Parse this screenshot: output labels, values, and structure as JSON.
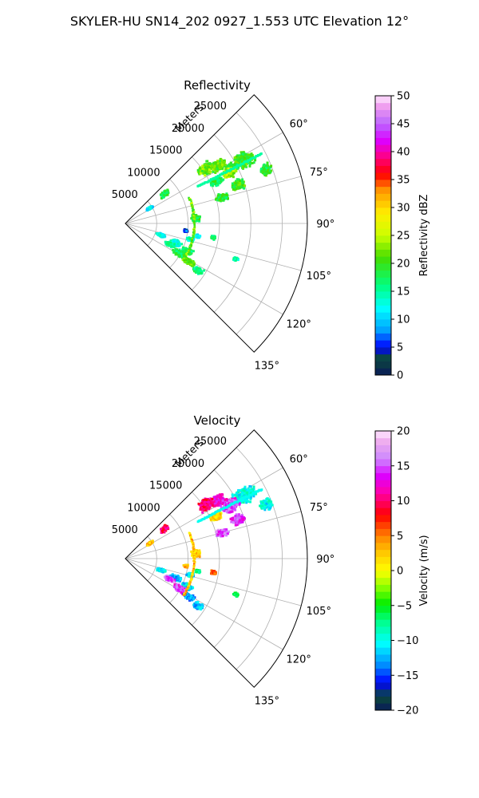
{
  "suptitle": "SKYLER-HU  SN14_202  0927_1.553 UTC Elevation 12°",
  "chart_data": [
    {
      "type": "ppi-sector",
      "title": "Reflectivity",
      "range_label": "Meters",
      "range_ticks": [
        5000,
        10000,
        15000,
        20000,
        25000
      ],
      "range_tick_labels": [
        "5000",
        "10000",
        "15000",
        "20000",
        "25000"
      ],
      "rmax": 29000,
      "azimuth_range_deg": [
        45,
        135
      ],
      "azimuth_ticks_deg": [
        60,
        75,
        90,
        105,
        120,
        135
      ],
      "azimuth_tick_labels": [
        "60°",
        "75°",
        "90°",
        "105°",
        "120°",
        "135°"
      ],
      "colorbar": {
        "label": "Reflectivity dBZ",
        "vmin": 0,
        "vmax": 50,
        "ticks": [
          0,
          5,
          10,
          15,
          20,
          25,
          30,
          35,
          40,
          45,
          50
        ],
        "tick_labels": [
          "0",
          "5",
          "10",
          "15",
          "20",
          "25",
          "30",
          "35",
          "40",
          "45",
          "50"
        ],
        "stops": [
          [
            0,
            "#0a1a5a"
          ],
          [
            0.06,
            "#0b4a3a"
          ],
          [
            0.1,
            "#0000ff"
          ],
          [
            0.16,
            "#00a0ff"
          ],
          [
            0.24,
            "#00ffff"
          ],
          [
            0.32,
            "#00ff80"
          ],
          [
            0.42,
            "#44dd00"
          ],
          [
            0.5,
            "#ccff00"
          ],
          [
            0.58,
            "#ffee00"
          ],
          [
            0.66,
            "#ff9900"
          ],
          [
            0.72,
            "#ff0000"
          ],
          [
            0.78,
            "#ff0080"
          ],
          [
            0.84,
            "#dd00ff"
          ],
          [
            0.9,
            "#bb66ff"
          ],
          [
            0.96,
            "#ee99ee"
          ],
          [
            1,
            "#ffe8ff"
          ]
        ]
      },
      "echo_regions": [
        {
          "az": 62,
          "r": 21500,
          "daz": 4.0,
          "dr": 2200,
          "value": 20
        },
        {
          "az": 62.5,
          "r": 19000,
          "daz": 3.0,
          "dr": 1400,
          "value": 18
        },
        {
          "az": 58,
          "r": 17500,
          "daz": 3.5,
          "dr": 1500,
          "value": 21
        },
        {
          "az": 64,
          "r": 18500,
          "daz": 3.0,
          "dr": 1400,
          "value": 24
        },
        {
          "az": 56,
          "r": 15500,
          "daz": 4.0,
          "dr": 1500,
          "value": 22
        },
        {
          "az": 65,
          "r": 16000,
          "daz": 3.0,
          "dr": 1200,
          "value": 18
        },
        {
          "az": 69,
          "r": 24000,
          "daz": 2.5,
          "dr": 1200,
          "value": 19
        },
        {
          "az": 71,
          "r": 19000,
          "daz": 3.0,
          "dr": 1400,
          "value": 20
        },
        {
          "az": 75,
          "r": 16000,
          "daz": 2.5,
          "dr": 1200,
          "value": 19
        },
        {
          "az": 53,
          "r": 7800,
          "daz": 3.5,
          "dr": 900,
          "value": 18
        },
        {
          "az": 58,
          "r": 4600,
          "daz": 3.0,
          "dr": 700,
          "value": 12
        },
        {
          "az": 86,
          "r": 11300,
          "daz": 3.5,
          "dr": 900,
          "value": 19
        },
        {
          "az": 108,
          "r": 6000,
          "daz": 3.0,
          "dr": 900,
          "value": 12
        },
        {
          "az": 111,
          "r": 8600,
          "daz": 3.5,
          "dr": 1100,
          "value": 13
        },
        {
          "az": 115,
          "r": 7800,
          "daz": 3.0,
          "dr": 1000,
          "value": 16
        },
        {
          "az": 114,
          "r": 10800,
          "daz": 3.0,
          "dr": 1100,
          "value": 17
        },
        {
          "az": 119,
          "r": 10000,
          "daz": 3.5,
          "dr": 1500,
          "value": 18
        },
        {
          "az": 121,
          "r": 11800,
          "daz": 3.0,
          "dr": 1300,
          "value": 21
        },
        {
          "az": 123,
          "r": 13800,
          "daz": 2.5,
          "dr": 1000,
          "value": 16
        },
        {
          "az": 104,
          "r": 10700,
          "daz": 2.0,
          "dr": 700,
          "value": 14
        },
        {
          "az": 100,
          "r": 11700,
          "daz": 1.5,
          "dr": 500,
          "value": 12
        },
        {
          "az": 97,
          "r": 9700,
          "daz": 1.5,
          "dr": 400,
          "value": 6
        },
        {
          "az": 99,
          "r": 14200,
          "daz": 1.5,
          "dr": 500,
          "value": 17
        },
        {
          "az": 108,
          "r": 18500,
          "daz": 1.0,
          "dr": 500,
          "value": 15
        }
      ],
      "arc": {
        "r": 11000,
        "az_from": 68,
        "az_to": 122,
        "value": 22
      },
      "line": {
        "az": 63,
        "r_from": 13000,
        "r_to": 24500,
        "value": 15
      }
    },
    {
      "type": "ppi-sector",
      "title": "Velocity",
      "range_label": "Meters",
      "range_ticks": [
        5000,
        10000,
        15000,
        20000,
        25000
      ],
      "range_tick_labels": [
        "5000",
        "10000",
        "15000",
        "20000",
        "25000"
      ],
      "rmax": 29000,
      "azimuth_range_deg": [
        45,
        135
      ],
      "azimuth_ticks_deg": [
        60,
        75,
        90,
        105,
        120,
        135
      ],
      "azimuth_tick_labels": [
        "60°",
        "75°",
        "90°",
        "105°",
        "120°",
        "135°"
      ],
      "colorbar": {
        "label": "Velocity (m/s)",
        "vmin": -20,
        "vmax": 20,
        "ticks": [
          -20,
          -15,
          -10,
          -5,
          0,
          5,
          10,
          15,
          20
        ],
        "tick_labels": [
          "−20",
          "−15",
          "−10",
          "−5",
          "0",
          "5",
          "10",
          "15",
          "20"
        ],
        "stops": [
          [
            0,
            "#0a1a5a"
          ],
          [
            0.05,
            "#0b4a3a"
          ],
          [
            0.1,
            "#0000ff"
          ],
          [
            0.16,
            "#0088ff"
          ],
          [
            0.24,
            "#00ffff"
          ],
          [
            0.32,
            "#00ff88"
          ],
          [
            0.38,
            "#00ee00"
          ],
          [
            0.44,
            "#88ff00"
          ],
          [
            0.5,
            "#ffff00"
          ],
          [
            0.56,
            "#ffcc00"
          ],
          [
            0.62,
            "#ff8800"
          ],
          [
            0.7,
            "#ff0000"
          ],
          [
            0.78,
            "#ff00aa"
          ],
          [
            0.84,
            "#dd00ff"
          ],
          [
            0.9,
            "#cc88ff"
          ],
          [
            0.96,
            "#eeaaee"
          ],
          [
            1,
            "#ffe8ff"
          ]
        ]
      },
      "echo_regions": [
        {
          "az": 62,
          "r": 21500,
          "daz": 4.0,
          "dr": 2200,
          "value": -10
        },
        {
          "az": 62.5,
          "r": 19000,
          "daz": 3.0,
          "dr": 1400,
          "value": 14
        },
        {
          "az": 58,
          "r": 17500,
          "daz": 3.5,
          "dr": 1500,
          "value": 13
        },
        {
          "az": 64,
          "r": 18500,
          "daz": 3.0,
          "dr": 1400,
          "value": 15
        },
        {
          "az": 56,
          "r": 15500,
          "daz": 4.0,
          "dr": 1500,
          "value": 10
        },
        {
          "az": 65,
          "r": 16000,
          "daz": 3.0,
          "dr": 1200,
          "value": 2
        },
        {
          "az": 69,
          "r": 24000,
          "daz": 2.5,
          "dr": 1200,
          "value": -10
        },
        {
          "az": 71,
          "r": 19000,
          "daz": 3.0,
          "dr": 1400,
          "value": 14
        },
        {
          "az": 75,
          "r": 16000,
          "daz": 2.5,
          "dr": 1200,
          "value": 15
        },
        {
          "az": 53,
          "r": 7800,
          "daz": 3.5,
          "dr": 900,
          "value": 10
        },
        {
          "az": 58,
          "r": 4600,
          "daz": 3.0,
          "dr": 700,
          "value": 3
        },
        {
          "az": 86,
          "r": 11300,
          "daz": 3.5,
          "dr": 900,
          "value": 2
        },
        {
          "az": 108,
          "r": 6000,
          "daz": 3.0,
          "dr": 900,
          "value": -11
        },
        {
          "az": 111,
          "r": 8600,
          "daz": 3.5,
          "dr": 1100,
          "value": -12
        },
        {
          "az": 115,
          "r": 7800,
          "daz": 3.0,
          "dr": 1000,
          "value": 15
        },
        {
          "az": 114,
          "r": 10800,
          "daz": 3.0,
          "dr": 1100,
          "value": -11
        },
        {
          "az": 119,
          "r": 10000,
          "daz": 3.5,
          "dr": 1500,
          "value": 14
        },
        {
          "az": 121,
          "r": 11800,
          "daz": 3.0,
          "dr": 1300,
          "value": -13
        },
        {
          "az": 123,
          "r": 13800,
          "daz": 2.5,
          "dr": 1000,
          "value": -12
        },
        {
          "az": 104,
          "r": 10700,
          "daz": 2.0,
          "dr": 700,
          "value": -11
        },
        {
          "az": 100,
          "r": 11700,
          "daz": 1.5,
          "dr": 500,
          "value": -7
        },
        {
          "az": 97,
          "r": 9700,
          "daz": 1.5,
          "dr": 400,
          "value": 3
        },
        {
          "az": 99,
          "r": 14200,
          "daz": 1.5,
          "dr": 500,
          "value": 6
        },
        {
          "az": 108,
          "r": 18500,
          "daz": 1.0,
          "dr": 500,
          "value": -6
        }
      ],
      "arc": {
        "r": 11000,
        "az_from": 68,
        "az_to": 122,
        "value": 3
      },
      "line": {
        "az": 63,
        "r_from": 13000,
        "r_to": 24500,
        "value": -10
      }
    }
  ]
}
